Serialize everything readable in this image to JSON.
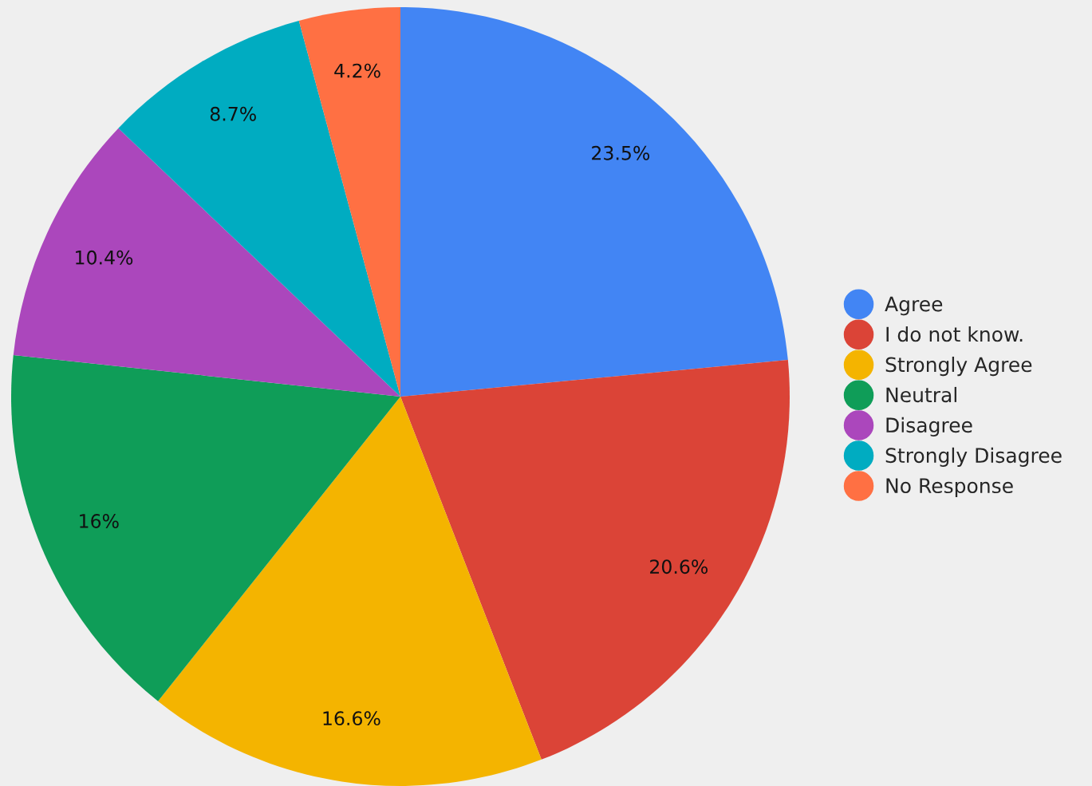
{
  "chart_data": {
    "type": "pie",
    "categories": [
      "Agree",
      "I do not know.",
      "Strongly Agree",
      "Neutral",
      "Disagree",
      "Strongly Disagree",
      "No Response"
    ],
    "values": [
      23.5,
      20.6,
      16.6,
      16,
      10.4,
      8.7,
      4.2
    ],
    "value_labels": [
      "23.5%",
      "20.6%",
      "16.6%",
      "16%",
      "10.4%",
      "8.7%",
      "4.2%"
    ],
    "colors": [
      "#4285f4",
      "#db4437",
      "#f4b400",
      "#0f9d58",
      "#ab47bc",
      "#00acc1",
      "#ff7043"
    ],
    "legend": "right"
  }
}
